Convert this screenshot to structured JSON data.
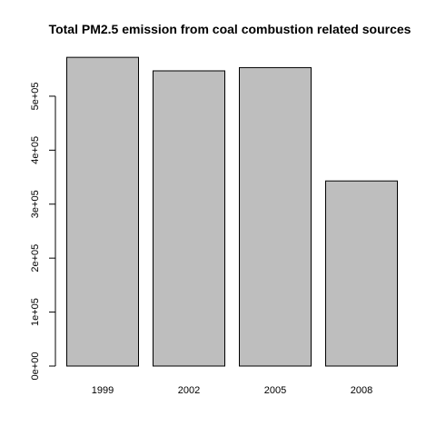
{
  "chart_data": {
    "type": "bar",
    "title": "Total PM2.5 emission from coal combustion related sources",
    "xlabel": "",
    "ylabel": "",
    "categories": [
      "1999",
      "2002",
      "2005",
      "2008"
    ],
    "values": [
      572000,
      547000,
      553000,
      343000
    ],
    "ylim": [
      0,
      600000
    ],
    "y_ticks": [
      0,
      100000,
      200000,
      300000,
      400000,
      500000
    ],
    "y_tick_labels": [
      "0e+00",
      "1e+05",
      "2e+05",
      "3e+05",
      "4e+05",
      "5e+05"
    ],
    "grid": false,
    "legend": "none",
    "colors": {
      "bar_fill": "#bebebe",
      "bar_stroke": "#000000",
      "axis": "#000000"
    }
  }
}
